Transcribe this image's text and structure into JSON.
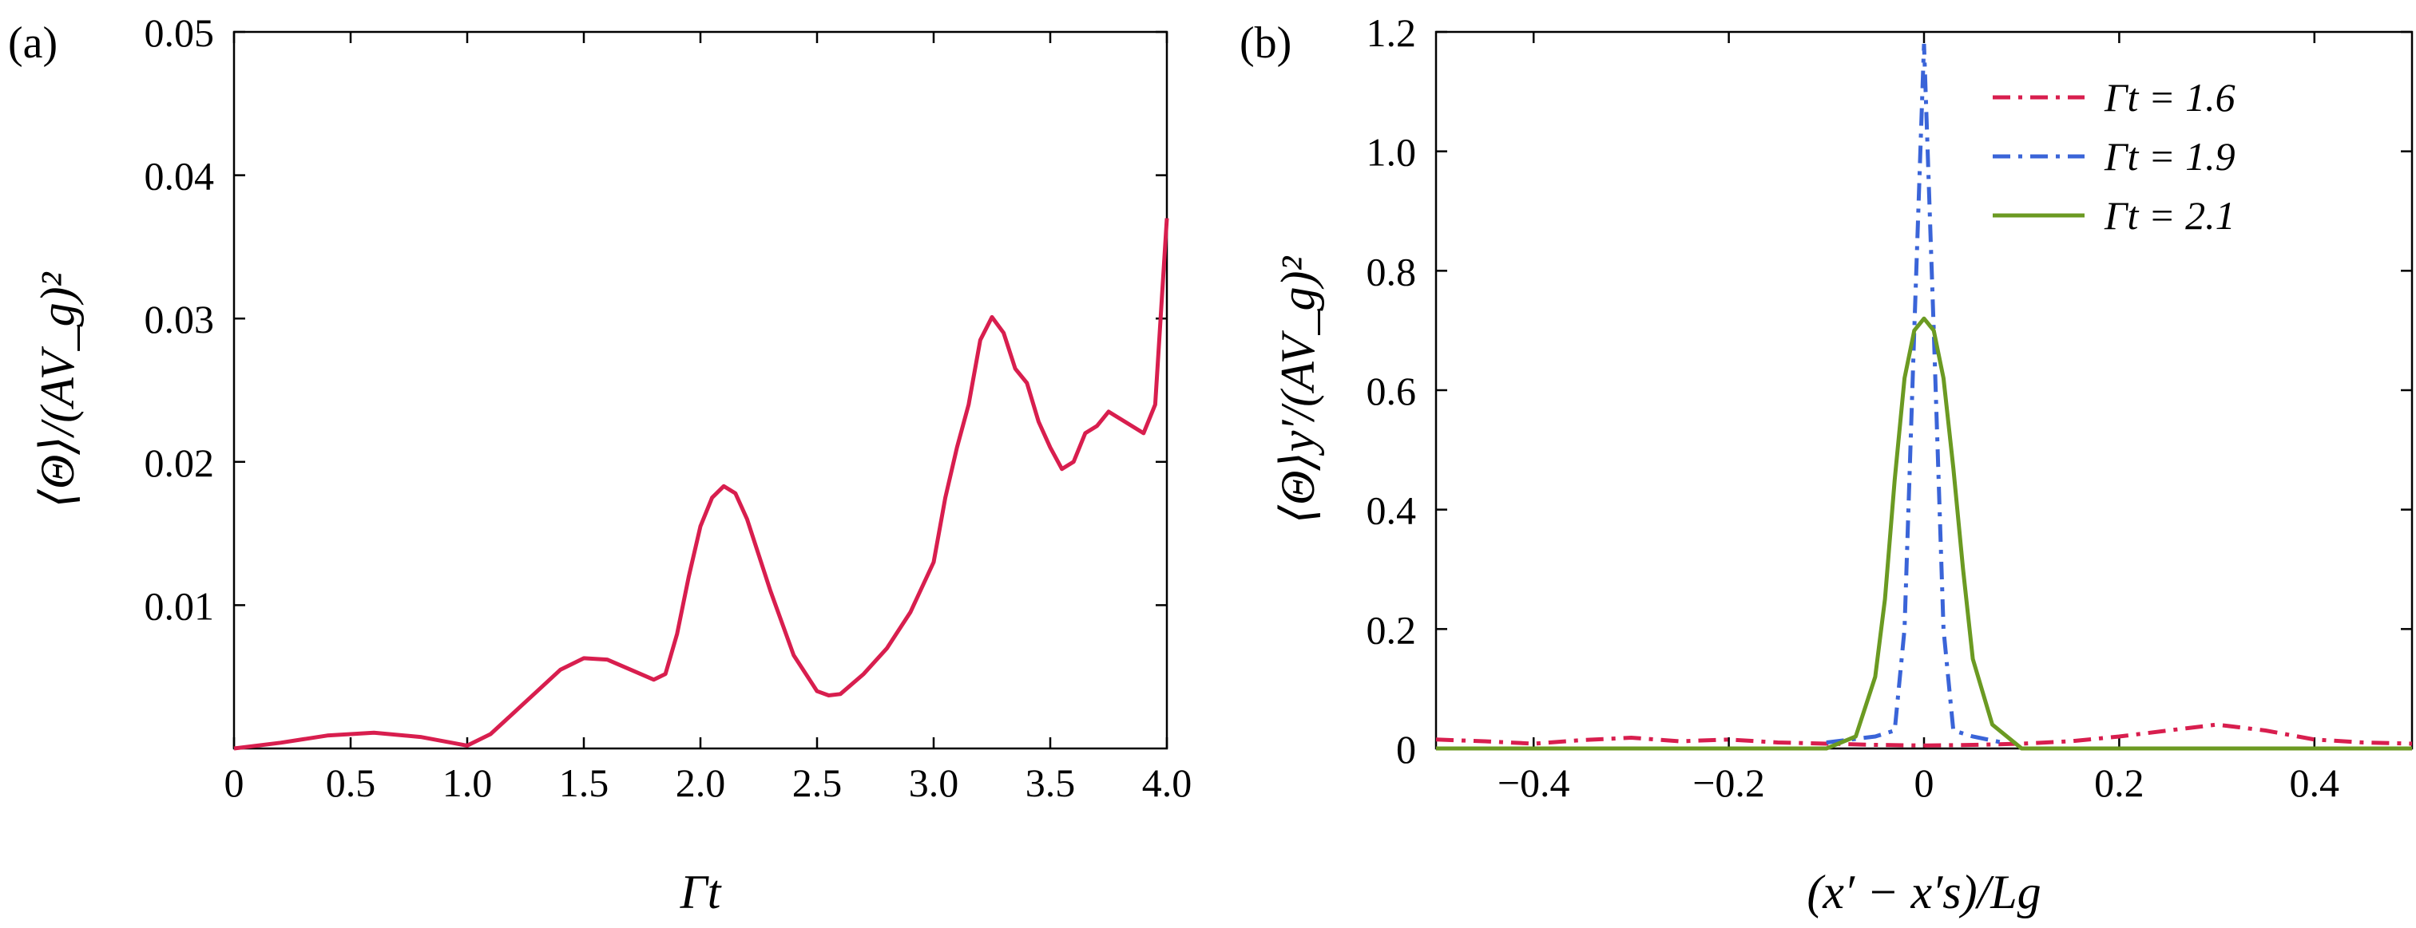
{
  "chart_data": [
    {
      "panel": "(a)",
      "type": "line",
      "xlabel": "Γt",
      "ylabel": "⟨Θ⟩/(AV_g)²",
      "xlim": [
        0,
        4
      ],
      "ylim": [
        0,
        0.05
      ],
      "xticks": [
        0,
        0.5,
        1,
        1.5,
        2,
        2.5,
        3,
        3.5,
        4
      ],
      "xtick_labels": [
        "0",
        "0.5",
        "1.0",
        "1.5",
        "2.0",
        "2.5",
        "3.0",
        "3.5",
        "4.0"
      ],
      "yticks": [
        0.01,
        0.02,
        0.03,
        0.04,
        0.05
      ],
      "ytick_labels": [
        "0.01",
        "0.02",
        "0.03",
        "0.04",
        "0.05"
      ],
      "series": [
        {
          "name": "⟨Θ⟩",
          "color": "#d81e4e",
          "x": [
            0,
            0.2,
            0.4,
            0.6,
            0.8,
            1.0,
            1.1,
            1.2,
            1.3,
            1.4,
            1.5,
            1.6,
            1.7,
            1.8,
            1.85,
            1.9,
            1.95,
            2.0,
            2.05,
            2.1,
            2.15,
            2.2,
            2.3,
            2.4,
            2.5,
            2.55,
            2.6,
            2.7,
            2.8,
            2.9,
            3.0,
            3.05,
            3.1,
            3.15,
            3.2,
            3.25,
            3.3,
            3.35,
            3.4,
            3.45,
            3.5,
            3.55,
            3.6,
            3.65,
            3.7,
            3.75,
            3.8,
            3.85,
            3.9,
            3.95,
            4.0
          ],
          "y": [
            0,
            0.0004,
            0.0009,
            0.0011,
            0.0008,
            0.0002,
            0.001,
            0.0025,
            0.004,
            0.0055,
            0.0063,
            0.0062,
            0.0055,
            0.0048,
            0.0052,
            0.008,
            0.012,
            0.0155,
            0.0175,
            0.0183,
            0.0178,
            0.016,
            0.011,
            0.0065,
            0.004,
            0.0037,
            0.0038,
            0.0052,
            0.007,
            0.0095,
            0.013,
            0.0175,
            0.021,
            0.024,
            0.0285,
            0.0301,
            0.029,
            0.0265,
            0.0255,
            0.0228,
            0.021,
            0.0195,
            0.02,
            0.022,
            0.0225,
            0.0235,
            0.023,
            0.0225,
            0.022,
            0.024,
            0.037
          ]
        }
      ]
    },
    {
      "panel": "(b)",
      "type": "line",
      "xlabel": "(x′ − x′s)/Lg",
      "ylabel": "⟨Θ⟩y′/(AV_g)²",
      "xlim": [
        -0.5,
        0.5
      ],
      "ylim": [
        0,
        1.2
      ],
      "xticks": [
        -0.4,
        -0.2,
        0,
        0.2,
        0.4
      ],
      "xtick_labels": [
        "−0.4",
        "−0.2",
        "0",
        "0.2",
        "0.4"
      ],
      "yticks": [
        0,
        0.2,
        0.4,
        0.6,
        0.8,
        1.0,
        1.2
      ],
      "ytick_labels": [
        "0",
        "0.2",
        "0.4",
        "0.6",
        "0.8",
        "1.0",
        "1.2"
      ],
      "legend_position": "top-right",
      "series": [
        {
          "name": "Γt = 1.6",
          "color": "#d81e4e",
          "dash": "dashdot",
          "x": [
            -0.5,
            -0.45,
            -0.4,
            -0.35,
            -0.3,
            -0.25,
            -0.2,
            -0.15,
            -0.1,
            -0.05,
            0,
            0.05,
            0.1,
            0.15,
            0.2,
            0.25,
            0.3,
            0.35,
            0.4,
            0.45,
            0.5
          ],
          "y": [
            0.015,
            0.012,
            0.008,
            0.014,
            0.018,
            0.012,
            0.015,
            0.01,
            0.008,
            0.006,
            0.005,
            0.006,
            0.008,
            0.012,
            0.02,
            0.03,
            0.04,
            0.03,
            0.015,
            0.01,
            0.008
          ]
        },
        {
          "name": "Γt = 1.9",
          "color": "#3a64d8",
          "dash": "dashdot",
          "x": [
            -0.1,
            -0.05,
            -0.03,
            -0.02,
            -0.01,
            0,
            0.01,
            0.02,
            0.03,
            0.05,
            0.08
          ],
          "y": [
            0.01,
            0.02,
            0.03,
            0.2,
            0.7,
            1.18,
            0.7,
            0.2,
            0.03,
            0.02,
            0.01
          ]
        },
        {
          "name": "Γt = 2.1",
          "color": "#6b9a22",
          "dash": "solid",
          "x": [
            -0.5,
            -0.1,
            -0.07,
            -0.05,
            -0.04,
            -0.03,
            -0.02,
            -0.01,
            0,
            0.01,
            0.02,
            0.03,
            0.04,
            0.05,
            0.07,
            0.1,
            0.5
          ],
          "y": [
            0.0,
            0.0,
            0.02,
            0.12,
            0.25,
            0.45,
            0.62,
            0.7,
            0.72,
            0.7,
            0.62,
            0.47,
            0.3,
            0.15,
            0.04,
            0.0,
            0.0
          ]
        }
      ]
    }
  ]
}
